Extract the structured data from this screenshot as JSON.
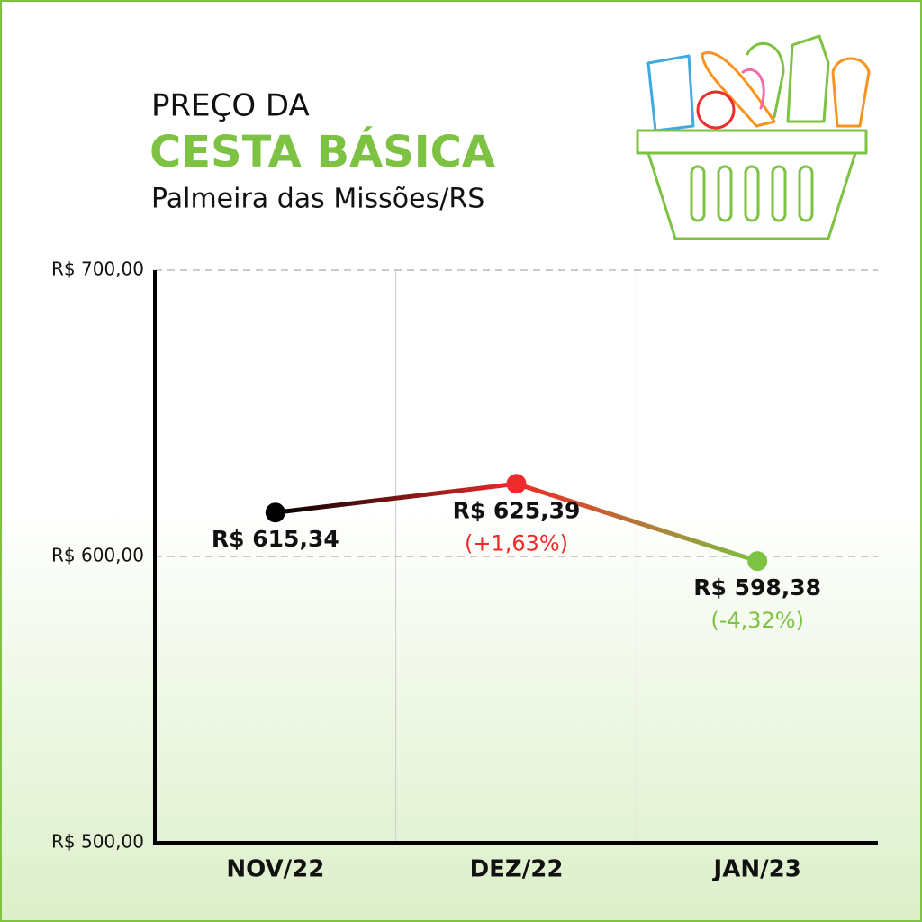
{
  "chart_data": {
    "type": "line",
    "title": "PREÇO DA",
    "title_highlight": "CESTA BÁSICA",
    "subtitle": "Palmeira das Missões/RS",
    "categories": [
      "NOV/22",
      "DEZ/22",
      "JAN/23"
    ],
    "values": [
      615.34,
      625.39,
      598.38
    ],
    "value_labels": [
      "R$ 615,34",
      "R$ 625,39",
      "R$ 598,38"
    ],
    "annotations": [
      null,
      "(+1,63%)",
      "(-4,32%)"
    ],
    "colors": [
      "#000000",
      "#ee2a2a",
      "#7dc242"
    ],
    "ylim": [
      500,
      700
    ],
    "yticks": [
      {
        "value": 500,
        "label": "R$ 500,00"
      },
      {
        "value": 600,
        "label": "R$ 600,00"
      },
      {
        "value": 700,
        "label": "R$ 700,00"
      }
    ],
    "grid": true
  }
}
